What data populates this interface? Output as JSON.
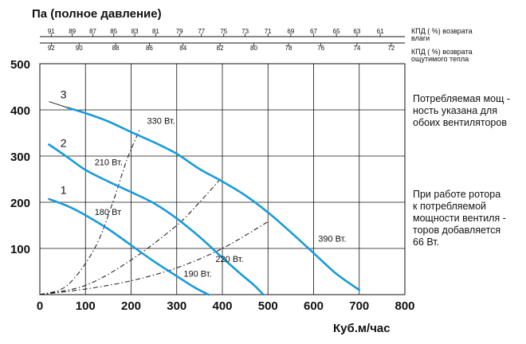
{
  "chart_data": {
    "type": "line",
    "y_title": "Па (полное давление)",
    "x_title": "Куб.м/час",
    "xlim": [
      0,
      800
    ],
    "ylim": [
      0,
      500
    ],
    "x_ticks": [
      0,
      100,
      200,
      300,
      400,
      500,
      600,
      700,
      800
    ],
    "y_ticks": [
      100,
      200,
      300,
      400,
      500
    ],
    "grid": true,
    "series": [
      {
        "name": "1",
        "color": "#1a9ad6",
        "x": [
          20,
          60,
          100,
          150,
          200,
          250,
          300,
          340,
          370
        ],
        "y": [
          207,
          192,
          172,
          142,
          107,
          72,
          40,
          15,
          0
        ]
      },
      {
        "name": "2",
        "color": "#1a9ad6",
        "x": [
          20,
          60,
          100,
          150,
          200,
          250,
          300,
          350,
          400,
          440,
          470,
          490
        ],
        "y": [
          325,
          298,
          270,
          245,
          222,
          198,
          165,
          125,
          80,
          45,
          20,
          0
        ]
      },
      {
        "name": "3",
        "color": "#1a9ad6",
        "x": [
          20,
          60,
          100,
          150,
          200,
          250,
          300,
          350,
          400,
          450,
          500,
          550,
          600,
          650,
          700
        ],
        "y": [
          418,
          405,
          393,
          375,
          352,
          330,
          305,
          272,
          245,
          215,
          178,
          135,
          90,
          45,
          10
        ]
      }
    ],
    "power_lines": [
      {
        "x": [
          0,
          60,
          120,
          160,
          190,
          220
        ],
        "y": [
          0,
          20,
          100,
          200,
          290,
          360
        ]
      },
      {
        "x": [
          0,
          100,
          200,
          300,
          350,
          400
        ],
        "y": [
          0,
          20,
          75,
          150,
          200,
          255
        ]
      },
      {
        "x": [
          0,
          100,
          200,
          300,
          400,
          500
        ],
        "y": [
          0,
          12,
          30,
          58,
          100,
          158
        ]
      }
    ],
    "annotations": [
      {
        "text": "330 Вт.",
        "x": 235,
        "y": 370
      },
      {
        "text": "210 Вт.",
        "x": 120,
        "y": 280
      },
      {
        "text": "180 Вт",
        "x": 120,
        "y": 172
      },
      {
        "text": "390 Вт.",
        "x": 610,
        "y": 115
      },
      {
        "text": "220 Вт.",
        "x": 385,
        "y": 71
      },
      {
        "text": "190 Вт.",
        "x": 315,
        "y": 39
      }
    ],
    "curve_labels": [
      {
        "text": "3",
        "x": 45,
        "y": 425
      },
      {
        "text": "2",
        "x": 45,
        "y": 320
      },
      {
        "text": "1",
        "x": 45,
        "y": 218
      }
    ],
    "top_scale_1": {
      "label": [
        "КПД ( %) возврата",
        "влаги"
      ],
      "ticks": [
        {
          "text": "91",
          "x": 25
        },
        {
          "text": "89",
          "x": 71
        },
        {
          "text": "87",
          "x": 116
        },
        {
          "text": "85",
          "x": 162
        },
        {
          "text": "83",
          "x": 208
        },
        {
          "text": "81",
          "x": 254
        },
        {
          "text": "79",
          "x": 306
        },
        {
          "text": "77",
          "x": 354
        },
        {
          "text": "75",
          "x": 403
        },
        {
          "text": "73",
          "x": 450
        },
        {
          "text": "71",
          "x": 500
        },
        {
          "text": "69",
          "x": 550
        },
        {
          "text": "67",
          "x": 600
        },
        {
          "text": "65",
          "x": 650
        },
        {
          "text": "63",
          "x": 695
        },
        {
          "text": "61",
          "x": 746
        }
      ]
    },
    "top_scale_2": {
      "label": [
        "КПД ( %) возврата",
        "ощутимого тепла"
      ],
      "ticks": [
        {
          "text": "92",
          "x": 25
        },
        {
          "text": "90",
          "x": 86
        },
        {
          "text": "88",
          "x": 166
        },
        {
          "text": "86",
          "x": 240
        },
        {
          "text": "84",
          "x": 314
        },
        {
          "text": "82",
          "x": 395
        },
        {
          "text": "80",
          "x": 469
        },
        {
          "text": "78",
          "x": 545
        },
        {
          "text": "76",
          "x": 616
        },
        {
          "text": "74",
          "x": 695
        },
        {
          "text": "72",
          "x": 770
        }
      ]
    }
  },
  "notes": {
    "note1": [
      "Потребляемая мощ -",
      "ность указана для",
      "обоих вентиляторов"
    ],
    "note2": [
      "При работе ротора",
      "к потребляемой",
      "мощности вентиля -",
      "торов добавляется",
      "66 Вт."
    ]
  }
}
